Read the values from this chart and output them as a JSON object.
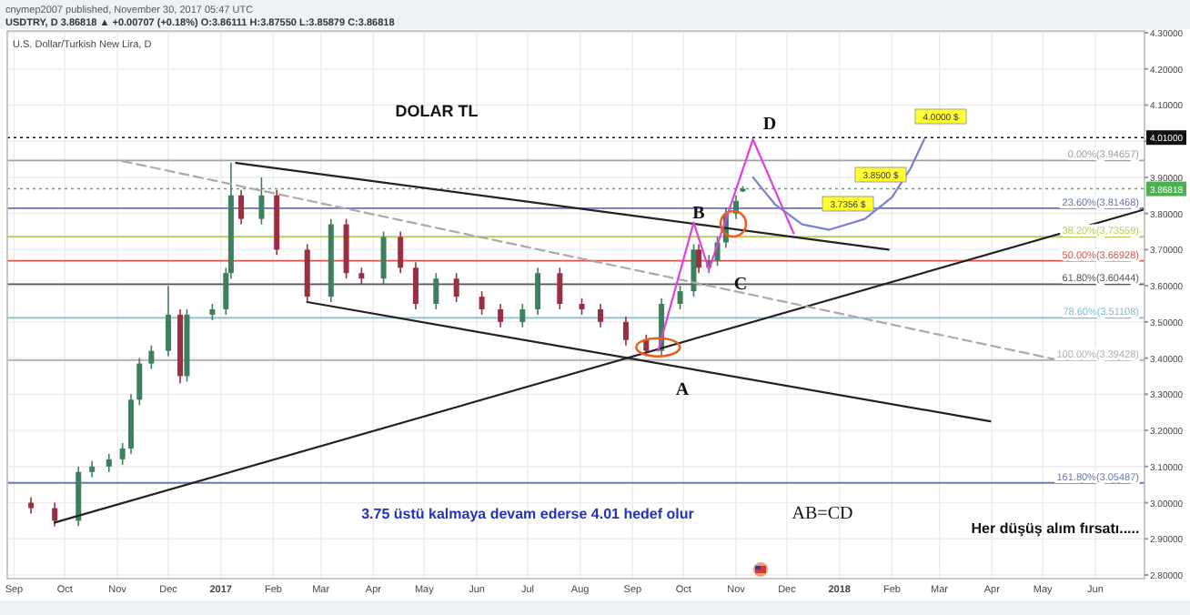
{
  "chart_data": {
    "type": "candlestick",
    "title": "DOLAR TL",
    "subtitle": "U.S. Dollar/Turkish New Lira, D",
    "xlim": [
      "2016-08-28",
      "2018-06-30"
    ],
    "ylim": [
      2.79,
      4.305
    ],
    "grid": true,
    "xticks": [
      {
        "value": "2016-09-01",
        "label": "Sep"
      },
      {
        "value": "2016-10-01",
        "label": "Oct"
      },
      {
        "value": "2016-11-01",
        "label": "Nov"
      },
      {
        "value": "2016-12-01",
        "label": "Dec"
      },
      {
        "value": "2017-01-01",
        "label": "2017"
      },
      {
        "value": "2017-02-01",
        "label": "Feb"
      },
      {
        "value": "2017-03-01",
        "label": "Mar"
      },
      {
        "value": "2017-04-01",
        "label": "Apr"
      },
      {
        "value": "2017-05-01",
        "label": "May"
      },
      {
        "value": "2017-06-01",
        "label": "Jun"
      },
      {
        "value": "2017-07-01",
        "label": "Jul"
      },
      {
        "value": "2017-08-01",
        "label": "Aug"
      },
      {
        "value": "2017-09-01",
        "label": "Sep"
      },
      {
        "value": "2017-10-01",
        "label": "Oct"
      },
      {
        "value": "2017-11-01",
        "label": "Nov"
      },
      {
        "value": "2017-12-01",
        "label": "Dec"
      },
      {
        "value": "2018-01-01",
        "label": "2018"
      },
      {
        "value": "2018-02-01",
        "label": "Feb"
      },
      {
        "value": "2018-03-01",
        "label": "Mar"
      },
      {
        "value": "2018-04-01",
        "label": "Apr"
      },
      {
        "value": "2018-05-01",
        "label": "May"
      },
      {
        "value": "2018-06-01",
        "label": "Jun"
      }
    ],
    "yticks": [
      {
        "value": 2.8,
        "label": "2.80000"
      },
      {
        "value": 2.9,
        "label": "2.90000"
      },
      {
        "value": 3.0,
        "label": "3.00000"
      },
      {
        "value": 3.1,
        "label": "3.10000"
      },
      {
        "value": 3.2,
        "label": "3.20000"
      },
      {
        "value": 3.3,
        "label": "3.30000"
      },
      {
        "value": 3.4,
        "label": "3.40000"
      },
      {
        "value": 3.5,
        "label": "3.50000"
      },
      {
        "value": 3.6,
        "label": "3.60000"
      },
      {
        "value": 3.7,
        "label": "3.70000"
      },
      {
        "value": 3.8,
        "label": "3.80000"
      },
      {
        "value": 3.9,
        "label": "3.90000"
      },
      {
        "value": 4.0,
        "label": null
      },
      {
        "value": 4.1,
        "label": "4.10000"
      },
      {
        "value": 4.2,
        "label": "4.20000"
      },
      {
        "value": 4.3,
        "label": "4.30000"
      }
    ],
    "series": [
      {
        "colors": [
          "#9b2f3f",
          "#9b2f3f",
          "#3e7f5e",
          "#3e7f5e",
          "#3e7f5e",
          "#3e7f5e",
          "#3e7f5e",
          "#3e7f5e",
          "#3e7f5e",
          "#3e7f5e",
          "#9b2f3f",
          "#3e7f5e",
          "#3e7f5e",
          "#3e7f5e",
          "#3e7f5e",
          "#9b2f3f",
          "#3e7f5e",
          "#9b2f3f",
          "#9b2f3f",
          "#3e7f5e",
          "#9b2f3f",
          "#9b2f3f",
          "#3e7f5e",
          "#9b2f3f",
          "#9b2f3f",
          "#3e7f5e",
          "#9b2f3f",
          "#9b2f3f",
          "#9b2f3f",
          "#3e7f5e",
          "#3e7f5e",
          "#9b2f3f",
          "#9b2f3f",
          "#9b2f3f",
          "#9b2f3f",
          "#9b2f3f",
          "#3e7f5e",
          "#3e7f5e",
          "#3e7f5e",
          "#9b2f3f",
          "#3e7f5e",
          "#3e7f5e",
          "#3e7f5e",
          "#3e7f5e",
          "#3e7f5e"
        ],
        "x": [
          "2016-09-11",
          "2016-09-25",
          "2016-10-09",
          "2016-10-17",
          "2016-10-27",
          "2016-11-04",
          "2016-11-09",
          "2016-11-14",
          "2016-11-21",
          "2016-12-01",
          "2016-12-08",
          "2016-12-12",
          "2016-12-27",
          "2017-01-04",
          "2017-01-07",
          "2017-01-13",
          "2017-01-25",
          "2017-02-03",
          "2017-02-21",
          "2017-03-07",
          "2017-03-16",
          "2017-03-25",
          "2017-04-07",
          "2017-04-17",
          "2017-04-26",
          "2017-05-08",
          "2017-05-20",
          "2017-06-04",
          "2017-06-15",
          "2017-06-28",
          "2017-07-07",
          "2017-07-20",
          "2017-08-02",
          "2017-08-13",
          "2017-08-28",
          "2017-09-09",
          "2017-09-18",
          "2017-09-29",
          "2017-10-07",
          "2017-10-10",
          "2017-10-16",
          "2017-10-21",
          "2017-10-26",
          "2017-11-01",
          "2017-11-05"
        ],
        "ohlc": [
          [
            3.0,
            3.015,
            2.97,
            2.985
          ],
          [
            2.985,
            3.0,
            2.935,
            2.95
          ],
          [
            2.95,
            3.1,
            2.935,
            3.085
          ],
          [
            3.085,
            3.115,
            3.07,
            3.1
          ],
          [
            3.1,
            3.135,
            3.085,
            3.12
          ],
          [
            3.12,
            3.165,
            3.105,
            3.15
          ],
          [
            3.15,
            3.3,
            3.135,
            3.285
          ],
          [
            3.285,
            3.4,
            3.27,
            3.385
          ],
          [
            3.385,
            3.435,
            3.37,
            3.42
          ],
          [
            3.42,
            3.6,
            3.405,
            3.52
          ],
          [
            3.52,
            3.535,
            3.33,
            3.35
          ],
          [
            3.35,
            3.535,
            3.335,
            3.52
          ],
          [
            3.52,
            3.55,
            3.505,
            3.535
          ],
          [
            3.535,
            3.65,
            3.52,
            3.635
          ],
          [
            3.635,
            3.94,
            3.62,
            3.85
          ],
          [
            3.85,
            3.865,
            3.77,
            3.785
          ],
          [
            3.785,
            3.9,
            3.77,
            3.85
          ],
          [
            3.85,
            3.865,
            3.685,
            3.7
          ],
          [
            3.7,
            3.715,
            3.555,
            3.57
          ],
          [
            3.57,
            3.785,
            3.555,
            3.77
          ],
          [
            3.77,
            3.785,
            3.62,
            3.635
          ],
          [
            3.635,
            3.65,
            3.605,
            3.62
          ],
          [
            3.62,
            3.75,
            3.605,
            3.735
          ],
          [
            3.735,
            3.75,
            3.635,
            3.65
          ],
          [
            3.65,
            3.665,
            3.535,
            3.55
          ],
          [
            3.55,
            3.635,
            3.535,
            3.62
          ],
          [
            3.62,
            3.635,
            3.555,
            3.57
          ],
          [
            3.57,
            3.585,
            3.52,
            3.535
          ],
          [
            3.535,
            3.55,
            3.485,
            3.5
          ],
          [
            3.5,
            3.55,
            3.485,
            3.535
          ],
          [
            3.535,
            3.65,
            3.52,
            3.635
          ],
          [
            3.635,
            3.65,
            3.535,
            3.55
          ],
          [
            3.55,
            3.565,
            3.52,
            3.535
          ],
          [
            3.535,
            3.55,
            3.485,
            3.5
          ],
          [
            3.5,
            3.515,
            3.435,
            3.45
          ],
          [
            3.45,
            3.465,
            3.405,
            3.42
          ],
          [
            3.42,
            3.565,
            3.405,
            3.55
          ],
          [
            3.55,
            3.6,
            3.535,
            3.585
          ],
          [
            3.585,
            3.715,
            3.57,
            3.7
          ],
          [
            3.7,
            3.715,
            3.635,
            3.65
          ],
          [
            3.65,
            3.685,
            3.635,
            3.67
          ],
          [
            3.67,
            3.735,
            3.655,
            3.72
          ],
          [
            3.72,
            3.815,
            3.705,
            3.8
          ],
          [
            3.8,
            3.85,
            3.785,
            3.835
          ],
          [
            3.86111,
            3.8755,
            3.85879,
            3.86818
          ]
        ]
      },
      {
        "type": "line",
        "color": "#222222",
        "x": [
          "2017-01-10",
          "2018-01-30"
        ],
        "values": [
          3.94,
          3.7
        ]
      },
      {
        "type": "line",
        "color": "#222222",
        "x": [
          "2017-02-21",
          "2018-03-31"
        ],
        "values": [
          3.555,
          3.225
        ]
      },
      {
        "type": "line",
        "color": "#222222",
        "x": [
          "2016-09-25",
          "2018-06-29"
        ],
        "values": [
          2.945,
          3.81
        ]
      },
      {
        "type": "line",
        "color": "#aaaaaa",
        "line_style": "dashed",
        "x": [
          "2016-11-04",
          "2018-05-10"
        ],
        "values": [
          3.945,
          3.395
        ]
      },
      {
        "type": "line",
        "color": "#e040e0",
        "x": [
          "2017-09-16",
          "2017-10-07",
          "2017-10-16",
          "2017-11-11",
          "2017-12-05"
        ],
        "values": [
          3.42,
          3.775,
          3.645,
          4.005,
          3.745
        ]
      },
      {
        "type": "line",
        "color": "#7a7fd6",
        "x": [
          "2017-11-11",
          "2017-11-24",
          "2017-12-10",
          "2017-12-26",
          "2018-01-16",
          "2018-02-01",
          "2018-02-12",
          "2018-02-20"
        ],
        "values": [
          3.9,
          3.825,
          3.77,
          3.755,
          3.785,
          3.845,
          3.925,
          4.005
        ]
      }
    ],
    "ref_lines": [
      {
        "axis": "y",
        "value": 3.94657,
        "label": "0.00%(3.94657)",
        "color": "#a0a0a0",
        "line_style": "solid"
      },
      {
        "axis": "y",
        "value": 3.81468,
        "label": "23.60%(3.81468)",
        "color": "#6a74a8",
        "line_style": "solid"
      },
      {
        "axis": "y",
        "value": 3.73559,
        "label": "38.20%(3.73559)",
        "color": "#bccb5a",
        "line_style": "solid"
      },
      {
        "axis": "y",
        "value": 3.66928,
        "label": "50.00%(3.66928)",
        "color": "#d9534f",
        "line_style": "solid"
      },
      {
        "axis": "y",
        "value": 3.60444,
        "label": "61.80%(3.60444)",
        "color": "#555555",
        "line_style": "solid"
      },
      {
        "axis": "y",
        "value": 3.51108,
        "label": "78.60%(3.51108)",
        "color": "#7fbfd0",
        "line_style": "solid"
      },
      {
        "axis": "y",
        "value": 3.39428,
        "label": "100.00%(3.39428)",
        "color": "#b0b0b0",
        "line_style": "solid"
      },
      {
        "axis": "y",
        "value": 3.05487,
        "label": "161.80%(3.05487)",
        "color": "#6b77a8",
        "line_style": "solid"
      },
      {
        "axis": "y",
        "value": 4.01,
        "label": "4.01000",
        "color": "#111111",
        "line_style": "dotted"
      },
      {
        "axis": "y",
        "value": 3.86818,
        "label": "3.86818",
        "color": "#4caf50",
        "line_style": "dotted"
      }
    ],
    "annotations": [
      "cnymep2007 published, November 30, 2017 05:47 UTC",
      "USDTRY, D 3.86818 ▲ +0.00707 (+0.18%) O:3.86111 H:3.87550 L:3.85879 C:3.86818",
      "3.75 üstü kalmaya devam ederse 4.01 hedef olur",
      "AB=CD",
      "Her düşüş alım fırsatı.....",
      "A",
      "B",
      "C",
      "D",
      "3.7356 $",
      "3.8500 $",
      "4.0000 $"
    ]
  }
}
